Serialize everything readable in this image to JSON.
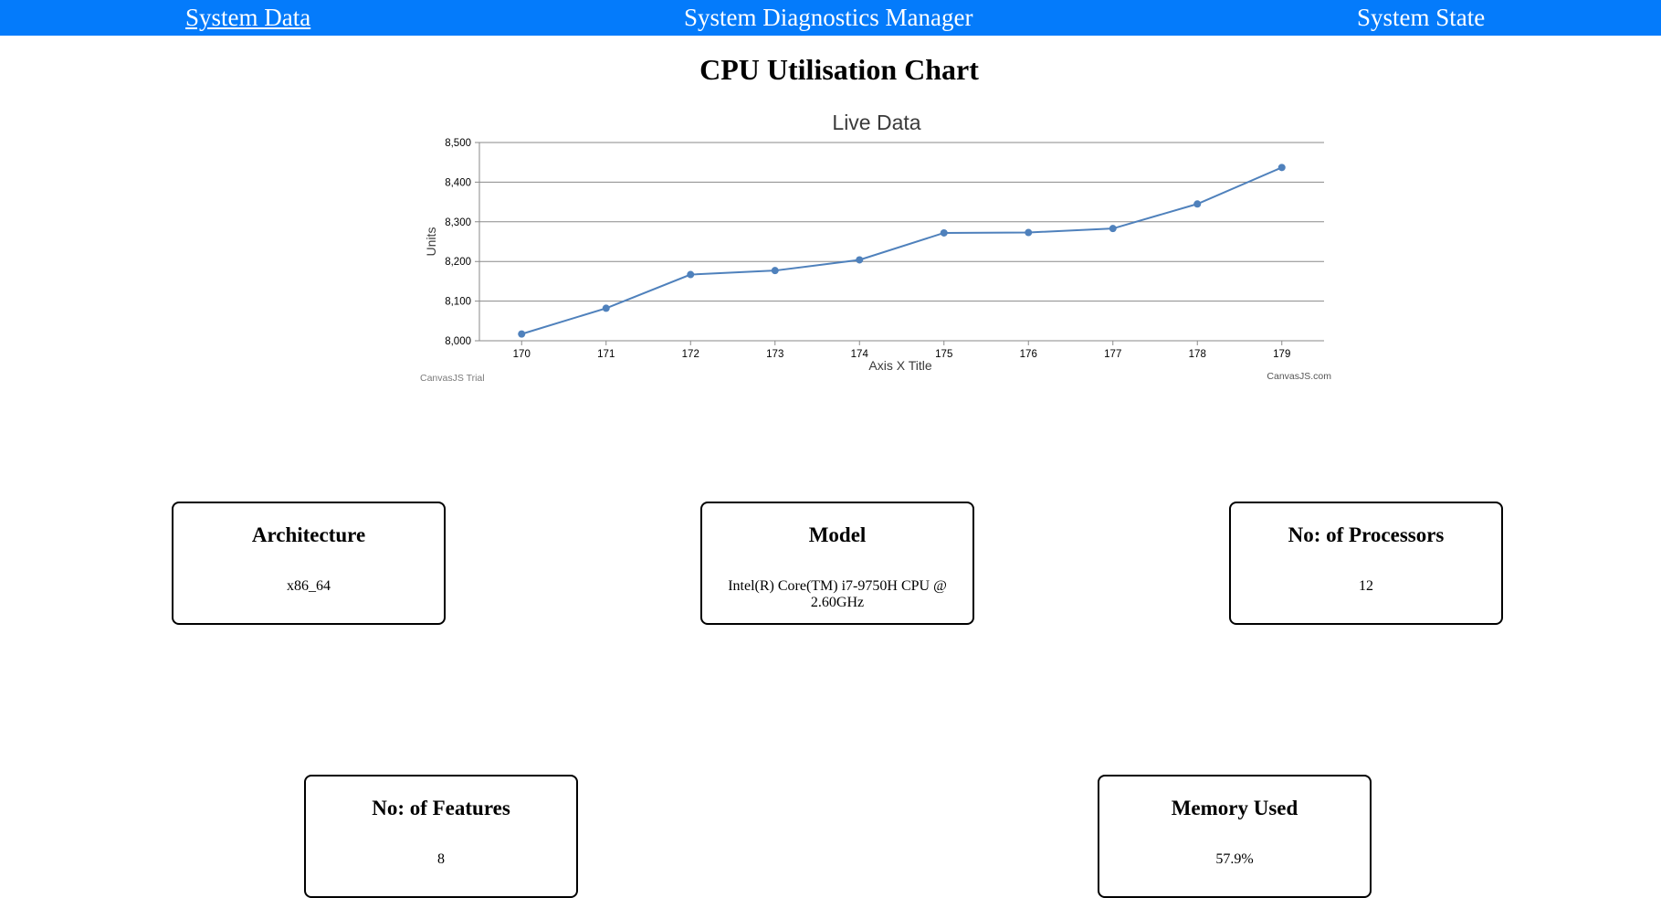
{
  "nav": {
    "system_data": "System Data",
    "title": "System Diagnostics Manager",
    "system_state": "System State"
  },
  "page_title": "CPU Utilisation Chart",
  "chart_data": {
    "type": "line",
    "title": "Live Data",
    "xlabel": "Axis X Title",
    "ylabel": "Units",
    "x": [
      170,
      171,
      172,
      173,
      174,
      175,
      176,
      177,
      178,
      179
    ],
    "series": [
      {
        "values": [
          8017,
          8082,
          8167,
          8177,
          8204,
          8272,
          8273,
          8283,
          8345,
          8437
        ]
      }
    ],
    "ylim": [
      8000,
      8500
    ],
    "yticks": [
      8000,
      8100,
      8200,
      8300,
      8400,
      8500
    ],
    "ytick_labels": [
      "8,000",
      "8,100",
      "8,200",
      "8,300",
      "8,400",
      "8,500"
    ],
    "grid": true,
    "color": "#4f81bc",
    "credit_left": "CanvasJS Trial",
    "credit_right": "CanvasJS.com"
  },
  "cards": [
    {
      "title": "Architecture",
      "value": "x86_64"
    },
    {
      "title": "Model",
      "value": "Intel(R) Core(TM) i7-9750H CPU @ 2.60GHz"
    },
    {
      "title": "No: of Processors",
      "value": "12"
    },
    {
      "title": "No: of Features",
      "value": "8"
    },
    {
      "title": "Memory Used",
      "value": "57.9%"
    }
  ]
}
